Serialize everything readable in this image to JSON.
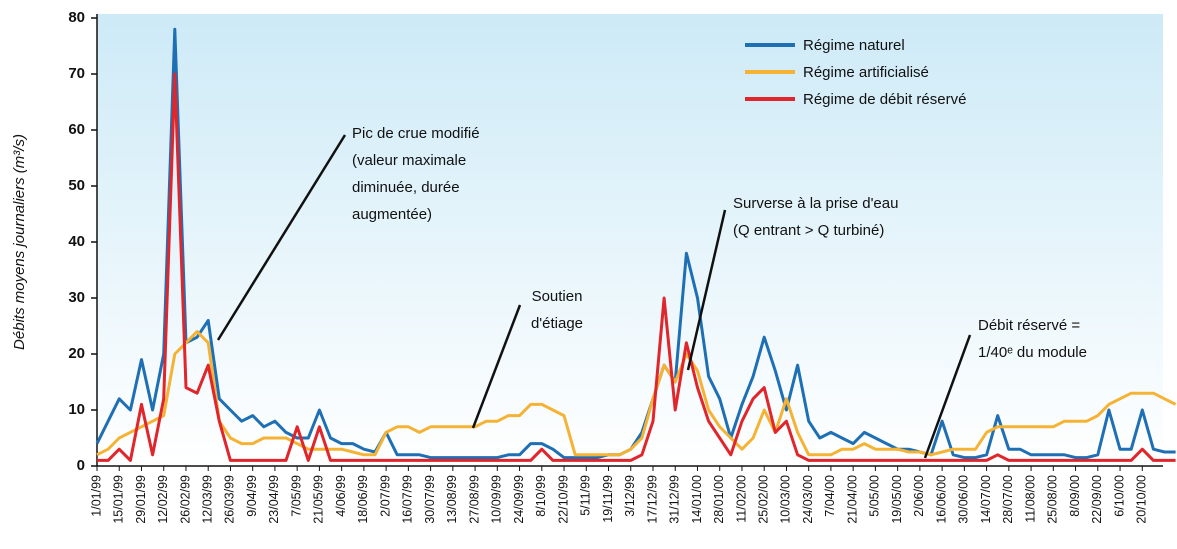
{
  "chart_data": {
    "type": "line",
    "ylabel": "Débits moyens journaliers (m³/s)",
    "ylim": [
      0,
      80
    ],
    "yticks": [
      0,
      10,
      20,
      30,
      40,
      50,
      60,
      70,
      80
    ],
    "legend": "top-right",
    "categories": [
      "1/01/99",
      null,
      "15/01/99",
      null,
      "29/01/99",
      null,
      "12/02/99",
      null,
      "26/02/99",
      null,
      "12/03/99",
      null,
      "26/03/99",
      null,
      "9/04/99",
      null,
      "23/04/99",
      null,
      "7/05/99",
      null,
      "21/05/99",
      null,
      "4/06/99",
      null,
      "18/06/99",
      null,
      "2/07/99",
      null,
      "16/07/99",
      null,
      "30/07/99",
      null,
      "13/08/99",
      null,
      "27/08/99",
      null,
      "10/09/99",
      null,
      "24/09/99",
      null,
      "8/10/99",
      null,
      "22/10/99",
      null,
      "5/11/99",
      null,
      "19/11/99",
      null,
      "3/12/99",
      null,
      "17/12/99",
      null,
      "31/12/99",
      null,
      "14/01/00",
      null,
      "28/01/00",
      null,
      "11/02/00",
      null,
      "25/02/00",
      null,
      "10/03/00",
      null,
      "24/03/00",
      null,
      "7/04/00",
      null,
      "21/04/00",
      null,
      "5/05/00",
      null,
      "19/05/00",
      null,
      "2/06/00",
      null,
      "16/06/00",
      null,
      "30/06/00",
      null,
      "14/07/00",
      null,
      "28/07/00",
      null,
      "11/08/00",
      null,
      "25/08/00",
      null,
      "8/09/00",
      null,
      "22/09/00",
      null,
      "6/10/00",
      null,
      "20/10/00",
      null,
      null,
      null
    ],
    "series": [
      {
        "name": "Régime naturel",
        "color": "#1f6fb5",
        "values": [
          4,
          8,
          12,
          10,
          19,
          10,
          20,
          78,
          22,
          23,
          26,
          12,
          10,
          8,
          9,
          7,
          8,
          6,
          5,
          5,
          10,
          5,
          4,
          4,
          3,
          2.5,
          6,
          2,
          2,
          2,
          1.5,
          1.5,
          1.5,
          1.5,
          1.5,
          1.5,
          1.5,
          2,
          2,
          4,
          4,
          3,
          1.5,
          1.5,
          1.5,
          1.5,
          2,
          2,
          3,
          6,
          12,
          18,
          15,
          38,
          30,
          16,
          12,
          5,
          11,
          16,
          23,
          17,
          10,
          18,
          8,
          5,
          6,
          5,
          4,
          6,
          5,
          4,
          3,
          3,
          2.5,
          2,
          8,
          2,
          1.5,
          1.5,
          2,
          9,
          3,
          3,
          2,
          2,
          2,
          2,
          1.5,
          1.5,
          2,
          10,
          3,
          3,
          10,
          3,
          2.5,
          2.5
        ]
      },
      {
        "name": "Régime artificialisé",
        "color": "#f5b335",
        "values": [
          2,
          3,
          5,
          6,
          7,
          8,
          9,
          20,
          22,
          24,
          22,
          8,
          5,
          4,
          4,
          5,
          5,
          5,
          4,
          3,
          3,
          3,
          3,
          2.5,
          2,
          2,
          6,
          7,
          7,
          6,
          7,
          7,
          7,
          7,
          7,
          8,
          8,
          9,
          9,
          11,
          11,
          10,
          9,
          2,
          2,
          2,
          2,
          2,
          3,
          5,
          12,
          18,
          15,
          20,
          17,
          10,
          7,
          5,
          3,
          5,
          10,
          6,
          12,
          6,
          2,
          2,
          2,
          3,
          3,
          4,
          3,
          3,
          3,
          2.5,
          2.5,
          2,
          2.5,
          3,
          3,
          3,
          6,
          7,
          7,
          7,
          7,
          7,
          7,
          8,
          8,
          8,
          9,
          11,
          12,
          13,
          13,
          13,
          12,
          11
        ]
      },
      {
        "name": "Régime de débit réservé",
        "color": "#e0252b",
        "values": [
          1,
          1,
          3,
          1,
          11,
          2,
          12,
          70,
          14,
          13,
          18,
          8,
          1,
          1,
          1,
          1,
          1,
          1,
          7,
          1,
          7,
          1,
          1,
          1,
          1,
          1,
          1,
          1,
          1,
          1,
          1,
          1,
          1,
          1,
          1,
          1,
          1,
          1,
          1,
          1,
          3,
          1,
          1,
          1,
          1,
          1,
          1,
          1,
          1,
          2,
          8,
          30,
          10,
          22,
          14,
          8,
          5,
          2,
          8,
          12,
          14,
          6,
          8,
          2,
          1,
          1,
          1,
          1,
          1,
          1,
          1,
          1,
          1,
          1,
          1,
          1,
          1,
          1,
          1,
          1,
          1,
          2,
          1,
          1,
          1,
          1,
          1,
          1,
          1,
          1,
          1,
          1,
          1,
          1,
          3,
          1,
          1,
          1
        ]
      }
    ],
    "annotations": [
      {
        "lines": [
          "Pic de crue modifié",
          "(valeur maximale",
          "diminuée, durée",
          "augmentée)"
        ]
      },
      {
        "lines": [
          "Surverse à la prise d'eau",
          "(Q entrant > Q turbiné)"
        ]
      },
      {
        "lines": [
          "Soutien",
          "d'étiage"
        ]
      },
      {
        "lines": [
          "Débit réservé =",
          "1/40ᵉ du module"
        ]
      }
    ]
  }
}
